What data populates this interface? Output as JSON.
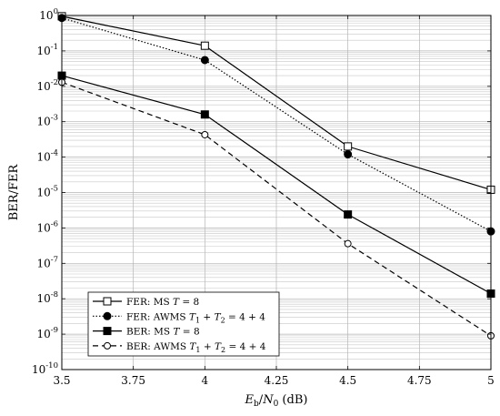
{
  "chart_data": {
    "type": "line",
    "xlabel": "E_b/N_0 (dB)",
    "ylabel": "BER/FER",
    "xlim": [
      3.5,
      5
    ],
    "ylim": [
      1e-10,
      1
    ],
    "yscale": "log",
    "grid": true,
    "legend_position": "bottom-left",
    "x_ticks": [
      "3.5",
      "3.75",
      "4",
      "4.25",
      "4.5",
      "4.75",
      "5"
    ],
    "x_tick_values": [
      3.5,
      3.75,
      4,
      4.25,
      4.5,
      4.75,
      5
    ],
    "y_tick_exponents": [
      0,
      -1,
      -2,
      -3,
      -4,
      -5,
      -6,
      -7,
      -8,
      -9,
      -10
    ],
    "series": [
      {
        "name": "FER: MS T = 8",
        "legend_html": "FER: MS <tspan font-style='italic'>T</tspan> = 8",
        "x": [
          3.5,
          4,
          4.5,
          5
        ],
        "y": [
          0.95,
          0.14,
          0.0002,
          1.2e-05
        ],
        "line": "solid",
        "marker": "open-square"
      },
      {
        "name": "FER: AWMS T1 + T2 = 4 + 4",
        "legend_html": "FER: AWMS <tspan font-style='italic'>T</tspan><tspan font-size='8' dy='3'>1</tspan><tspan dy='-3'> + </tspan><tspan font-style='italic'>T</tspan><tspan font-size='8' dy='3'>2</tspan><tspan dy='-3'> = 4 + 4</tspan>",
        "x": [
          3.5,
          4,
          4.5,
          5
        ],
        "y": [
          0.85,
          0.055,
          0.00012,
          8e-07
        ],
        "line": "dotted",
        "marker": "filled-circle"
      },
      {
        "name": "BER: MS T = 8",
        "legend_html": "BER: MS <tspan font-style='italic'>T</tspan> = 8",
        "x": [
          3.5,
          4,
          4.5,
          5
        ],
        "y": [
          0.02,
          0.0016,
          2.4e-06,
          1.4e-08
        ],
        "line": "solid",
        "marker": "filled-square"
      },
      {
        "name": "BER: AWMS T1 + T2 = 4 + 4",
        "legend_html": "BER: AWMS <tspan font-style='italic'>T</tspan><tspan font-size='8' dy='3'>1</tspan><tspan dy='-3'> + </tspan><tspan font-style='italic'>T</tspan><tspan font-size='8' dy='3'>2</tspan><tspan dy='-3'> = 4 + 4</tspan>",
        "x": [
          3.5,
          4,
          4.5,
          5
        ],
        "y": [
          0.013,
          0.00043,
          3.6e-07,
          9e-10
        ],
        "line": "dashed",
        "marker": "open-circle"
      }
    ]
  }
}
